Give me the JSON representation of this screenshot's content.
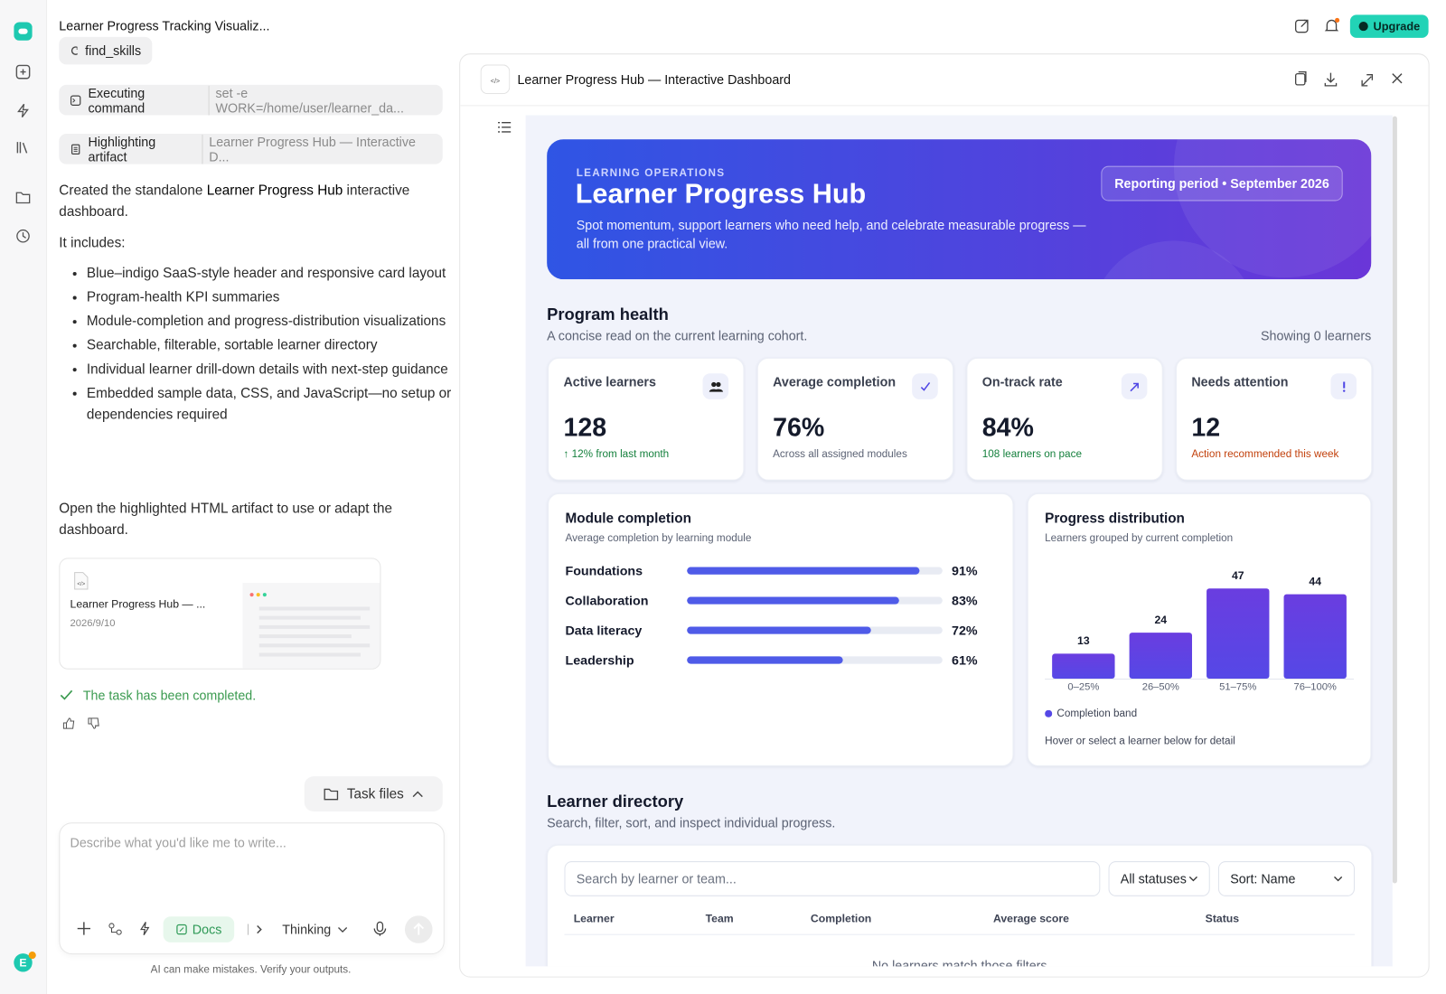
{
  "app": {
    "title": "Learner Progress Tracking Visualiz...",
    "upgrade": "Upgrade"
  },
  "chat": {
    "steps": [
      {
        "label": "find_skills"
      },
      {
        "label": "Executing command",
        "detail": "set -e WORK=/home/user/learner_da..."
      },
      {
        "label": "Highlighting artifact",
        "detail": "Learner Progress Hub — Interactive D..."
      }
    ],
    "intro": [
      "Created the standalone ",
      "Learner Progress Hub",
      " interactive dashboard."
    ],
    "includes": "It includes:",
    "bullets": [
      "Blue–indigo SaaS-style header and responsive card layout",
      "Program-health KPI summaries",
      "Module-completion and progress-distribution visualizations",
      "Searchable, filterable, sortable learner directory",
      "Individual learner drill-down details with next-step guidance",
      "Embedded sample data, CSS, and JavaScript—no setup or dependencies required"
    ],
    "outro": "Open the highlighted HTML artifact to use or adapt the dashboard.",
    "artifact": {
      "title": "Learner Progress Hub — ...",
      "date": "2026/9/10"
    },
    "status": "The task has been completed.",
    "task_files": "Task files",
    "input_placeholder": "Describe what you'd like me to write...",
    "docs": "Docs",
    "mode": "Thinking",
    "disclaimer": "AI can make mistakes. Verify your outputs."
  },
  "panel": {
    "title": "Learner Progress Hub — Interactive Dashboard"
  },
  "dashboard": {
    "hero": {
      "eyebrow": "LEARNING OPERATIONS",
      "title": "Learner Progress Hub",
      "subtitle": "Spot momentum, support learners who need help, and celebrate measurable progress —all from one practical view.",
      "period": "Reporting period • September 2026"
    },
    "health": {
      "title": "Program health",
      "subtitle": "A concise read on the current learning cohort.",
      "showing": "Showing 0 learners",
      "kpis": [
        {
          "label": "Active learners",
          "value": "128",
          "note": "↑ 12% from last month"
        },
        {
          "label": "Average completion",
          "value": "76%",
          "note": "Across all assigned modules"
        },
        {
          "label": "On-track rate",
          "value": "84%",
          "note": "108 learners on pace"
        },
        {
          "label": "Needs attention",
          "value": "12",
          "note": "Action recommended this week"
        }
      ]
    },
    "module_chart": {
      "type": "bar",
      "orientation": "horizontal",
      "title": "Module completion",
      "subtitle": "Average completion by learning module",
      "categories": [
        "Foundations",
        "Collaboration",
        "Data literacy",
        "Leadership"
      ],
      "values": [
        91,
        83,
        72,
        61
      ],
      "value_labels": [
        "91%",
        "83%",
        "72%",
        "61%"
      ],
      "xlim": [
        0,
        100
      ],
      "color": "#4f5be8"
    },
    "distribution_chart": {
      "type": "bar",
      "title": "Progress distribution",
      "subtitle": "Learners grouped by current completion",
      "categories": [
        "0–25%",
        "26–50%",
        "51–75%",
        "76–100%"
      ],
      "values": [
        13,
        24,
        47,
        44
      ],
      "ylim": [
        0,
        50
      ],
      "color": "#5548e6",
      "legend": "Completion band",
      "note": "Hover or select a learner below for detail"
    },
    "directory": {
      "title": "Learner directory",
      "subtitle": "Search, filter, sort, and inspect individual progress.",
      "search_placeholder": "Search by learner or team...",
      "status_filter": "All statuses",
      "sort": "Sort: Name",
      "columns": [
        "Learner",
        "Team",
        "Completion",
        "Average score",
        "Status"
      ],
      "empty": "No learners match those filters"
    }
  }
}
